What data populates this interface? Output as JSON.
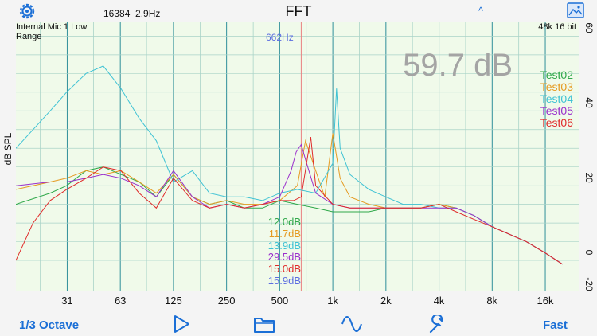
{
  "header": {
    "title": "FFT",
    "fft_size": "16384",
    "resolution": "2.9Hz",
    "settings_icon": "gear-icon",
    "collapse_icon": "caret-up-icon",
    "image_icon": "image-icon"
  },
  "plot": {
    "input_label": "Internal Mic 1 Low",
    "range_label": "Range",
    "format_label": "48k 16 bit",
    "cursor_freq": "662Hz",
    "level_reading": "59.7 dB",
    "y_axis_label": "dB SPL"
  },
  "legend": [
    {
      "name": "Test02",
      "color": "#2fa84a"
    },
    {
      "name": "Test03",
      "color": "#e59a20"
    },
    {
      "name": "Test04",
      "color": "#3ec2d4"
    },
    {
      "name": "Test05",
      "color": "#9a2fcc"
    },
    {
      "name": "Test06",
      "color": "#e02a2a"
    }
  ],
  "readings": [
    {
      "value": "12.0dB",
      "color": "#2fa84a"
    },
    {
      "value": "11.7dB",
      "color": "#e59a20"
    },
    {
      "value": "13.9dB",
      "color": "#3ec2d4"
    },
    {
      "value": "29.5dB",
      "color": "#9a2fcc"
    },
    {
      "value": "15.0dB",
      "color": "#e02a2a"
    },
    {
      "value": "15.9dB",
      "color": "#5b6de0"
    }
  ],
  "chart_data": {
    "type": "line",
    "x_scale": "log",
    "xlim": [
      16,
      25000
    ],
    "ylim": [
      -12,
      60
    ],
    "grid": true,
    "legend_position": "right",
    "ylabel": "dB SPL",
    "x_ticks": [
      "31",
      "63",
      "125",
      "250",
      "500",
      "1k",
      "2k",
      "4k",
      "8k",
      "16k"
    ],
    "y_ticks": [
      "60",
      "40",
      "20",
      "0",
      "-20"
    ],
    "cursor_hz": 662,
    "series": [
      {
        "name": "Test02",
        "color": "#2fa84a",
        "x": [
          16,
          25,
          31,
          40,
          50,
          63,
          80,
          100,
          125,
          160,
          200,
          250,
          315,
          400,
          500,
          630,
          800,
          1000,
          1250,
          1600,
          2000,
          2500,
          3150,
          4000,
          5000,
          6300,
          8000,
          10000,
          12500,
          16000,
          20000
        ],
        "y": [
          13,
          16,
          18,
          22,
          23,
          21,
          19,
          15,
          21,
          15,
          13,
          14,
          12,
          12,
          14,
          13,
          12,
          11,
          11,
          11,
          12,
          12,
          12,
          13,
          12,
          10,
          7,
          5,
          3,
          0,
          -3
        ]
      },
      {
        "name": "Test03",
        "color": "#e59a20",
        "x": [
          16,
          25,
          31,
          40,
          50,
          63,
          80,
          100,
          125,
          160,
          200,
          250,
          315,
          400,
          500,
          630,
          700,
          800,
          900,
          1000,
          1100,
          1250,
          1600,
          2000,
          2500,
          3150,
          4000,
          5000,
          6300,
          8000,
          10000,
          12500,
          16000,
          20000
        ],
        "y": [
          17,
          19,
          20,
          22,
          21,
          22,
          19,
          16,
          21,
          15,
          13,
          14,
          13,
          13,
          14,
          18,
          30,
          22,
          15,
          32,
          20,
          15,
          13,
          12,
          12,
          12,
          13,
          12,
          10,
          7,
          5,
          3,
          0,
          -3
        ]
      },
      {
        "name": "Test04",
        "color": "#3ec2d4",
        "x": [
          16,
          20,
          25,
          31,
          40,
          50,
          63,
          80,
          100,
          125,
          160,
          200,
          250,
          315,
          400,
          500,
          630,
          800,
          1000,
          1050,
          1100,
          1250,
          1600,
          2000,
          2500,
          3150,
          4000,
          5000,
          6300,
          8000,
          10000,
          12500,
          16000,
          20000
        ],
        "y": [
          28,
          33,
          38,
          43,
          48,
          50,
          44,
          36,
          30,
          19,
          22,
          16,
          15,
          15,
          14,
          16,
          17,
          16,
          24,
          44,
          28,
          21,
          17,
          15,
          13,
          13,
          12,
          12,
          10,
          7,
          5,
          3,
          0,
          -3
        ]
      },
      {
        "name": "Test05",
        "color": "#9a2fcc",
        "x": [
          16,
          25,
          31,
          40,
          50,
          63,
          80,
          100,
          125,
          160,
          200,
          250,
          315,
          400,
          500,
          580,
          620,
          662,
          700,
          800,
          1000,
          1250,
          1600,
          2000,
          2500,
          3150,
          4000,
          5000,
          6300,
          8000,
          10000,
          12500,
          16000,
          20000
        ],
        "y": [
          18,
          19,
          19,
          20,
          21,
          20,
          18,
          15,
          22,
          15,
          12,
          13,
          12,
          13,
          15,
          22,
          27,
          29,
          25,
          16,
          13,
          12,
          12,
          12,
          12,
          12,
          12,
          12,
          10,
          7,
          5,
          3,
          0,
          -3
        ]
      },
      {
        "name": "Test06",
        "color": "#e02a2a",
        "x": [
          16,
          20,
          25,
          31,
          40,
          50,
          63,
          80,
          100,
          125,
          160,
          200,
          250,
          315,
          400,
          500,
          600,
          662,
          750,
          800,
          1000,
          1250,
          1600,
          2000,
          2500,
          3150,
          4000,
          5000,
          6300,
          8000,
          10000,
          12500,
          16000,
          20000
        ],
        "y": [
          -2,
          8,
          14,
          17,
          20,
          23,
          22,
          16,
          12,
          20,
          14,
          12,
          13,
          12,
          13,
          14,
          14,
          15,
          31,
          18,
          13,
          12,
          12,
          12,
          12,
          12,
          13,
          11,
          9,
          7,
          5,
          3,
          0,
          -3
        ]
      }
    ]
  },
  "toolbar": {
    "octave_label": "1/3 Octave",
    "play_icon": "play-icon",
    "folder_icon": "folder-icon",
    "wave_icon": "sine-wave-icon",
    "wrench_icon": "wrench-icon",
    "speed_label": "Fast"
  }
}
